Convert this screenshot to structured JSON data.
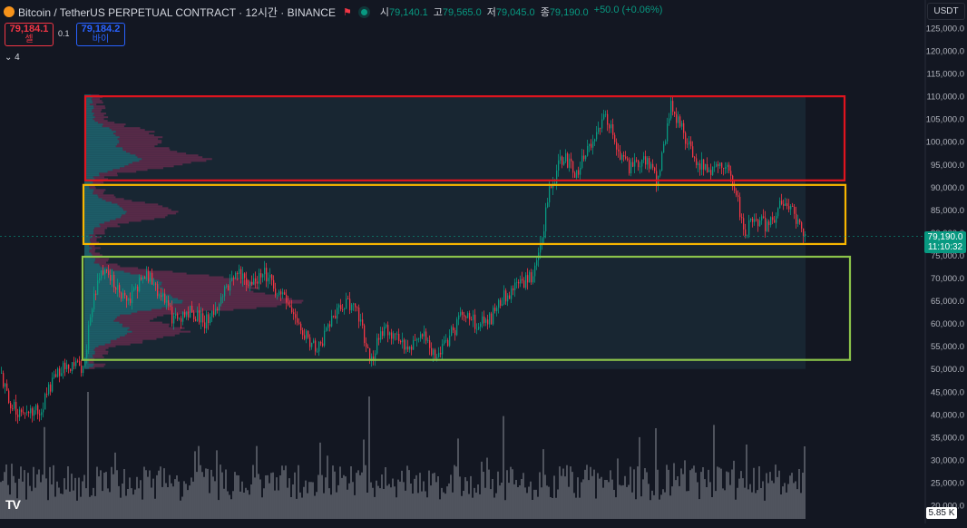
{
  "header": {
    "symbol": "Bitcoin / TetherUS PERPETUAL CONTRACT · 12시간 · BINANCE",
    "open_label": "시",
    "open": "79,140.1",
    "high_label": "고",
    "high": "79,565.0",
    "low_label": "저",
    "low": "79,045.0",
    "close_label": "종",
    "close": "79,190.0",
    "change": "+50.0 (+0.06%)"
  },
  "trade": {
    "sell_price": "79,184.1",
    "sell_label": "셀",
    "spread": "0.1",
    "buy_price": "79,184.2",
    "buy_label": "바이"
  },
  "indicators_toggle": "4",
  "currency": "USDT",
  "last_price": {
    "price": "79,190.0",
    "countdown": "11:10:32"
  },
  "volume_badge": "5.85 K",
  "brand": "TV",
  "colors": {
    "up": "#089981",
    "down": "#f23645",
    "volume": "#b2b5be",
    "bg": "#131722"
  },
  "chart_data": {
    "type": "candlestick",
    "y_axis": {
      "ticks": [
        "125,000.0",
        "120,000.0",
        "115,000.0",
        "110,000.0",
        "105,000.0",
        "100,000.0",
        "95,000.0",
        "90,000.0",
        "85,000.0",
        "80,000.0",
        "75,000.0",
        "70,000.0",
        "65,000.0",
        "60,000.0",
        "55,000.0",
        "50,000.0",
        "45,000.0",
        "40,000.0",
        "35,000.0",
        "30,000.0",
        "25,000.0",
        "20,000.0"
      ],
      "range": [
        20000,
        125000
      ]
    },
    "price_path": [
      [
        0,
        49000
      ],
      [
        12,
        42000
      ],
      [
        28,
        39500
      ],
      [
        45,
        41500
      ],
      [
        58,
        48000
      ],
      [
        75,
        51000
      ],
      [
        92,
        50500
      ],
      [
        100,
        64000
      ],
      [
        112,
        71000
      ],
      [
        125,
        69000
      ],
      [
        140,
        65000
      ],
      [
        160,
        71000
      ],
      [
        175,
        67000
      ],
      [
        190,
        61000
      ],
      [
        210,
        63000
      ],
      [
        225,
        60000
      ],
      [
        245,
        66000
      ],
      [
        260,
        71000
      ],
      [
        275,
        69000
      ],
      [
        290,
        71500
      ],
      [
        305,
        67000
      ],
      [
        320,
        63000
      ],
      [
        335,
        58000
      ],
      [
        350,
        54000
      ],
      [
        365,
        61000
      ],
      [
        380,
        65000
      ],
      [
        395,
        62000
      ],
      [
        408,
        51000
      ],
      [
        420,
        59000
      ],
      [
        435,
        57000
      ],
      [
        450,
        55000
      ],
      [
        465,
        58000
      ],
      [
        480,
        53000
      ],
      [
        495,
        57000
      ],
      [
        510,
        62000
      ],
      [
        525,
        60000
      ],
      [
        540,
        61000
      ],
      [
        555,
        66000
      ],
      [
        570,
        68000
      ],
      [
        585,
        70000
      ],
      [
        595,
        77000
      ],
      [
        605,
        89000
      ],
      [
        620,
        97000
      ],
      [
        635,
        93000
      ],
      [
        650,
        99000
      ],
      [
        668,
        106000
      ],
      [
        680,
        97000
      ],
      [
        695,
        94000
      ],
      [
        710,
        96000
      ],
      [
        725,
        91000
      ],
      [
        738,
        108000
      ],
      [
        755,
        101000
      ],
      [
        770,
        95000
      ],
      [
        785,
        94000
      ],
      [
        800,
        96000
      ],
      [
        812,
        88000
      ],
      [
        820,
        79000
      ],
      [
        830,
        84000
      ],
      [
        845,
        81000
      ],
      [
        860,
        86000
      ],
      [
        875,
        84000
      ],
      [
        888,
        79190
      ]
    ],
    "zones": [
      {
        "name": "red",
        "low": 91500,
        "high": 110000,
        "color": "#e0141e"
      },
      {
        "name": "yellow",
        "low": 77500,
        "high": 90500,
        "color": "#f7b500"
      },
      {
        "name": "green",
        "low": 52000,
        "high": 74700,
        "color": "#8bc34a"
      }
    ],
    "volume_profile_peaks": [
      {
        "price": 96000,
        "weight": 0.55
      },
      {
        "price": 101000,
        "weight": 0.3
      },
      {
        "price": 84500,
        "weight": 0.4
      },
      {
        "price": 64500,
        "weight": 1.0
      },
      {
        "price": 69000,
        "weight": 0.75
      },
      {
        "price": 58000,
        "weight": 0.45
      }
    ],
    "last_price": 79190,
    "volume_axis_badge": "5.85 K"
  }
}
